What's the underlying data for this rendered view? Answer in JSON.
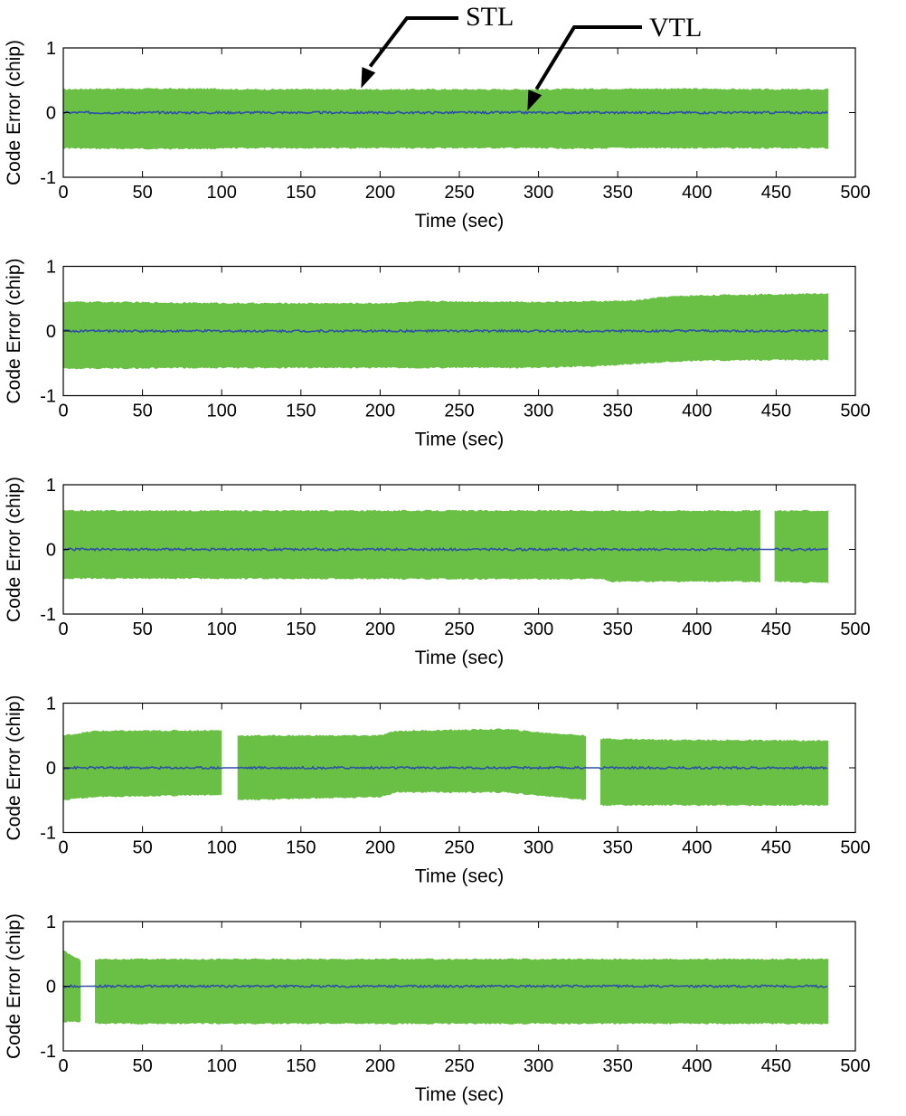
{
  "colors": {
    "stl": "#6abf45",
    "vtl": "#2e4fa8",
    "axis": "#000000"
  },
  "annotations": [
    {
      "label": "STL",
      "series": "STL",
      "target_time": 188,
      "target_error": 0.35
    },
    {
      "label": "VTL",
      "series": "VTL",
      "target_time": 293,
      "target_error": 0.0
    }
  ],
  "chart_data": [
    {
      "type": "area",
      "xlabel": "Time (sec)",
      "ylabel": "Code Error (chip)",
      "xlim": [
        0,
        500
      ],
      "ylim": [
        -1,
        1
      ],
      "xticks": [
        0,
        50,
        100,
        150,
        200,
        250,
        300,
        350,
        400,
        450,
        500
      ],
      "yticks": [
        -1,
        0,
        1
      ],
      "series": [
        {
          "name": "STL",
          "kind": "band",
          "x": [
            0,
            20,
            100,
            110,
            200,
            300,
            340,
            345,
            400,
            440,
            450,
            483
          ],
          "upper": [
            0.36,
            0.37,
            0.37,
            0.36,
            0.36,
            0.36,
            0.37,
            0.37,
            0.37,
            0.36,
            0.36,
            0.36
          ],
          "lower": [
            -0.55,
            -0.56,
            -0.56,
            -0.55,
            -0.55,
            -0.55,
            -0.56,
            -0.55,
            -0.55,
            -0.55,
            -0.55,
            -0.55
          ]
        },
        {
          "name": "VTL",
          "kind": "line",
          "x": [
            0,
            483
          ],
          "y": [
            0,
            0
          ]
        }
      ]
    },
    {
      "type": "area",
      "xlabel": "Time (sec)",
      "ylabel": "Code Error (chip)",
      "xlim": [
        0,
        500
      ],
      "ylim": [
        -1,
        1
      ],
      "xticks": [
        0,
        50,
        100,
        150,
        200,
        250,
        300,
        350,
        400,
        450,
        500
      ],
      "yticks": [
        -1,
        0,
        1
      ],
      "series": [
        {
          "name": "STL",
          "kind": "band",
          "x": [
            0,
            20,
            110,
            200,
            230,
            300,
            340,
            360,
            380,
            400,
            450,
            483
          ],
          "upper": [
            0.45,
            0.45,
            0.43,
            0.43,
            0.46,
            0.45,
            0.46,
            0.47,
            0.53,
            0.55,
            0.57,
            0.58
          ],
          "lower": [
            -0.58,
            -0.58,
            -0.57,
            -0.57,
            -0.57,
            -0.57,
            -0.54,
            -0.51,
            -0.48,
            -0.46,
            -0.45,
            -0.45
          ]
        },
        {
          "name": "VTL",
          "kind": "line",
          "x": [
            0,
            483
          ],
          "y": [
            0,
            0
          ]
        }
      ]
    },
    {
      "type": "area",
      "xlabel": "Time (sec)",
      "ylabel": "Code Error (chip)",
      "xlim": [
        0,
        500
      ],
      "ylim": [
        -1,
        1
      ],
      "xticks": [
        0,
        50,
        100,
        150,
        200,
        250,
        300,
        350,
        400,
        450,
        500
      ],
      "yticks": [
        -1,
        0,
        1
      ],
      "gaps": [
        [
          440,
          449
        ]
      ],
      "series": [
        {
          "name": "STL",
          "kind": "band",
          "x": [
            0,
            340,
            345,
            440,
            449,
            483
          ],
          "upper": [
            0.6,
            0.6,
            0.6,
            0.6,
            0.6,
            0.6
          ],
          "lower": [
            -0.45,
            -0.46,
            -0.5,
            -0.5,
            -0.5,
            -0.52
          ]
        },
        {
          "name": "VTL",
          "kind": "line",
          "x": [
            0,
            483
          ],
          "y": [
            0,
            0
          ]
        }
      ]
    },
    {
      "type": "area",
      "xlabel": "Time (sec)",
      "ylabel": "Code Error (chip)",
      "xlim": [
        0,
        500
      ],
      "ylim": [
        -1,
        1
      ],
      "xticks": [
        0,
        50,
        100,
        150,
        200,
        250,
        300,
        350,
        400,
        450,
        500
      ],
      "yticks": [
        -1,
        0,
        1
      ],
      "gaps": [
        [
          100,
          110
        ],
        [
          330,
          339
        ]
      ],
      "series": [
        {
          "name": "STL",
          "kind": "band",
          "x": [
            0,
            20,
            100,
            110,
            200,
            210,
            280,
            300,
            330,
            339,
            400,
            483
          ],
          "upper": [
            0.5,
            0.57,
            0.58,
            0.5,
            0.5,
            0.57,
            0.6,
            0.55,
            0.5,
            0.45,
            0.43,
            0.42
          ],
          "lower": [
            -0.5,
            -0.45,
            -0.42,
            -0.5,
            -0.45,
            -0.38,
            -0.38,
            -0.43,
            -0.5,
            -0.58,
            -0.58,
            -0.58
          ]
        },
        {
          "name": "VTL",
          "kind": "line",
          "x": [
            0,
            483
          ],
          "y": [
            0,
            0
          ]
        }
      ]
    },
    {
      "type": "area",
      "xlabel": "Time (sec)",
      "ylabel": "Code Error (chip)",
      "xlim": [
        0,
        500
      ],
      "ylim": [
        -1,
        1
      ],
      "xticks": [
        0,
        50,
        100,
        150,
        200,
        250,
        300,
        350,
        400,
        450,
        500
      ],
      "yticks": [
        -1,
        0,
        1
      ],
      "gaps": [
        [
          11,
          20
        ]
      ],
      "series": [
        {
          "name": "STL",
          "kind": "band",
          "x": [
            0,
            11,
            20,
            483
          ],
          "upper": [
            0.55,
            0.4,
            0.42,
            0.42
          ],
          "lower": [
            -0.55,
            -0.55,
            -0.58,
            -0.58
          ]
        },
        {
          "name": "VTL",
          "kind": "line",
          "x": [
            0,
            483
          ],
          "y": [
            0,
            0
          ]
        }
      ]
    }
  ]
}
